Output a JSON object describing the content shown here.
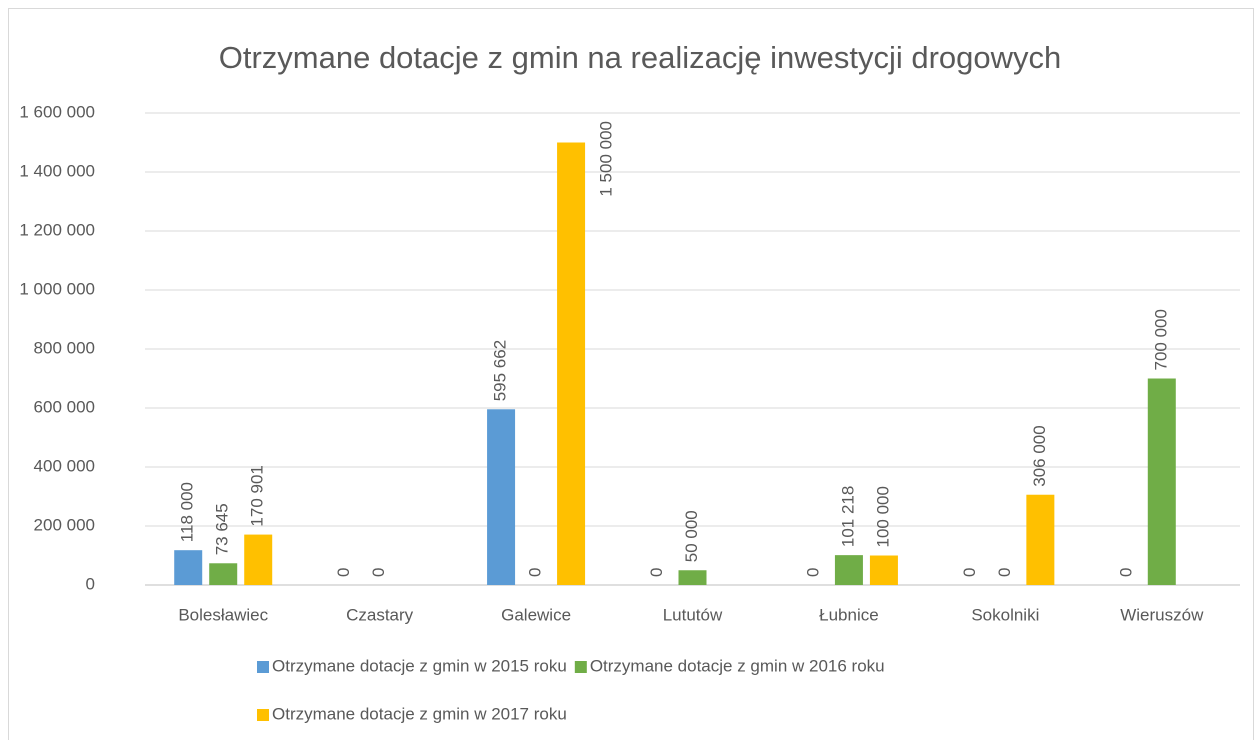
{
  "chart_data": {
    "type": "bar",
    "title": "Otrzymane dotacje z gmin na realizację inwestycji drogowych",
    "categories": [
      "Bolesławiec",
      "Czastary",
      "Galewice",
      "Lututów",
      "Łubnice",
      "Sokolniki",
      "Wieruszów"
    ],
    "series": [
      {
        "name": "Otrzymane dotacje z gmin w 2015 roku",
        "color": "#5b9bd5",
        "values": [
          118000,
          0,
          595662,
          0,
          0,
          0,
          0
        ],
        "value_labels": [
          "118 000",
          "0",
          "595 662",
          "0",
          "0",
          "0",
          "0"
        ]
      },
      {
        "name": "Otrzymane dotacje z gmin w 2016 roku",
        "color": "#70ad47",
        "values": [
          73645,
          0,
          0,
          50000,
          101218,
          0,
          700000
        ],
        "value_labels": [
          "73 645",
          "0",
          "0",
          "50 000",
          "101 218",
          "0",
          "700 000"
        ]
      },
      {
        "name": "Otrzymane dotacje z gmin w 2017 roku",
        "color": "#ffc000",
        "values": [
          170901,
          null,
          1500000,
          null,
          100000,
          306000,
          null
        ],
        "value_labels": [
          "170 901",
          null,
          "1 500 000",
          null,
          "100 000",
          "306 000",
          null
        ]
      }
    ],
    "ylim": [
      0,
      1600000
    ],
    "yticks": [
      0,
      {
        "value": 200000,
        "label": "200 000"
      },
      {
        "value": 400000,
        "label": "400 000"
      },
      {
        "value": 600000,
        "label": "600 000"
      },
      {
        "value": 800000,
        "label": "800 000"
      },
      {
        "value": 1000000,
        "label": "1 000 000"
      },
      {
        "value": 1200000,
        "label": "1 200 000"
      },
      {
        "value": 1400000,
        "label": "1 400 000"
      },
      {
        "value": 1600000,
        "label": "1 600 000"
      }
    ],
    "grid": true,
    "legend": "bottom"
  }
}
